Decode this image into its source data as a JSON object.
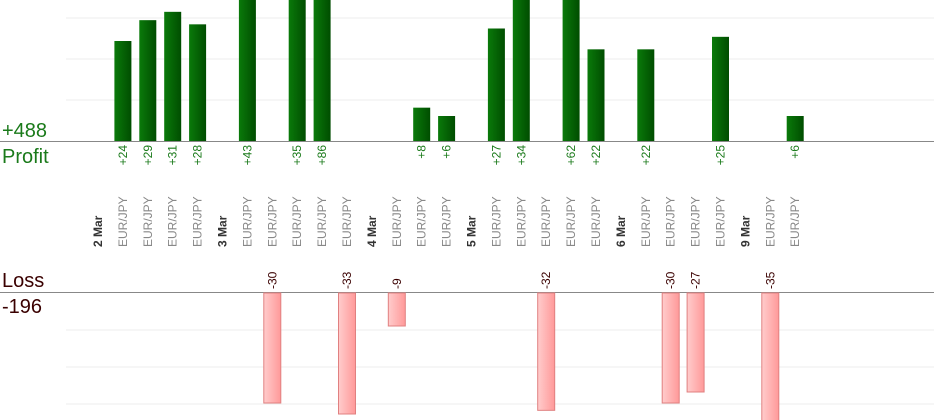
{
  "summary": {
    "profit_total": "+488",
    "profit_label": "Profit",
    "loss_label": "Loss",
    "loss_total": "-196"
  },
  "colors": {
    "profit_bar": "#0b6d0b",
    "profit_text": "#1a7a1a",
    "loss_bar": "#ffb3b3",
    "loss_text": "#3a0000",
    "grid": "#eeeeee",
    "axis": "#888888"
  },
  "chart_data": {
    "type": "bar",
    "y_profit_range": [
      0,
      42
    ],
    "y_loss_range": [
      0,
      35
    ],
    "grid": true,
    "slots": [
      {
        "kind": "date",
        "label": "2 Mar"
      },
      {
        "kind": "trade",
        "label": "EUR/JPY",
        "value": 24
      },
      {
        "kind": "trade",
        "label": "EUR/JPY",
        "value": 29
      },
      {
        "kind": "trade",
        "label": "EUR/JPY",
        "value": 31
      },
      {
        "kind": "trade",
        "label": "EUR/JPY",
        "value": 28
      },
      {
        "kind": "date",
        "label": "3 Mar"
      },
      {
        "kind": "trade",
        "label": "EUR/JPY",
        "value": 43
      },
      {
        "kind": "trade",
        "label": "EUR/JPY",
        "value": -30
      },
      {
        "kind": "trade",
        "label": "EUR/JPY",
        "value": 35
      },
      {
        "kind": "trade",
        "label": "EUR/JPY",
        "value": 86
      },
      {
        "kind": "trade",
        "label": "EUR/JPY",
        "value": -33
      },
      {
        "kind": "date",
        "label": "4 Mar"
      },
      {
        "kind": "trade",
        "label": "EUR/JPY",
        "value": -9
      },
      {
        "kind": "trade",
        "label": "EUR/JPY",
        "value": 8
      },
      {
        "kind": "trade",
        "label": "EUR/JPY",
        "value": 6
      },
      {
        "kind": "date",
        "label": "5 Mar"
      },
      {
        "kind": "trade",
        "label": "EUR/JPY",
        "value": 27
      },
      {
        "kind": "trade",
        "label": "EUR/JPY",
        "value": 34
      },
      {
        "kind": "trade",
        "label": "EUR/JPY",
        "value": -32
      },
      {
        "kind": "trade",
        "label": "EUR/JPY",
        "value": 62
      },
      {
        "kind": "trade",
        "label": "EUR/JPY",
        "value": 22
      },
      {
        "kind": "date",
        "label": "6 Mar"
      },
      {
        "kind": "trade",
        "label": "EUR/JPY",
        "value": 22
      },
      {
        "kind": "trade",
        "label": "EUR/JPY",
        "value": -30
      },
      {
        "kind": "trade",
        "label": "EUR/JPY",
        "value": -27
      },
      {
        "kind": "trade",
        "label": "EUR/JPY",
        "value": 25
      },
      {
        "kind": "date",
        "label": "9 Mar"
      },
      {
        "kind": "trade",
        "label": "EUR/JPY",
        "value": -35
      },
      {
        "kind": "trade",
        "label": "EUR/JPY",
        "value": 6
      }
    ]
  }
}
